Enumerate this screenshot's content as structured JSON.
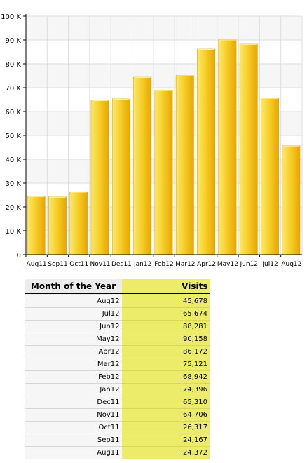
{
  "chart_data": {
    "type": "bar",
    "categories": [
      "Aug11",
      "Sep11",
      "Oct11",
      "Nov11",
      "Dec11",
      "Jan12",
      "Feb12",
      "Mar12",
      "Apr12",
      "May12",
      "Jun12",
      "Jul12",
      "Aug12"
    ],
    "values": [
      24372,
      24167,
      26317,
      64706,
      65310,
      74396,
      68942,
      75121,
      86172,
      90158,
      88281,
      65674,
      45678
    ],
    "ylim": [
      0,
      100000
    ],
    "yticks": [
      0,
      10000,
      20000,
      30000,
      40000,
      50000,
      60000,
      70000,
      80000,
      90000,
      100000
    ],
    "ytick_labels": [
      "0",
      "10 K",
      "20 K",
      "30 K",
      "40 K",
      "50 K",
      "60 K",
      "70 K",
      "80 K",
      "90 K",
      "100 K"
    ],
    "grid": true,
    "bar_color": "#f2c21a",
    "bar_edge_color": "#e7a400",
    "band_color": "#f6f6f6"
  },
  "table": {
    "header_month": "Month of the Year",
    "header_visits": "Visits",
    "rows": [
      {
        "month": "Aug12",
        "visits": "45,678"
      },
      {
        "month": "Jul12",
        "visits": "65,674"
      },
      {
        "month": "Jun12",
        "visits": "88,281"
      },
      {
        "month": "May12",
        "visits": "90,158"
      },
      {
        "month": "Apr12",
        "visits": "86,172"
      },
      {
        "month": "Mar12",
        "visits": "75,121"
      },
      {
        "month": "Feb12",
        "visits": "68,942"
      },
      {
        "month": "Jan12",
        "visits": "74,396"
      },
      {
        "month": "Dec11",
        "visits": "65,310"
      },
      {
        "month": "Nov11",
        "visits": "64,706"
      },
      {
        "month": "Oct11",
        "visits": "26,317"
      },
      {
        "month": "Sep11",
        "visits": "24,167"
      },
      {
        "month": "Aug11",
        "visits": "24,372"
      }
    ]
  }
}
